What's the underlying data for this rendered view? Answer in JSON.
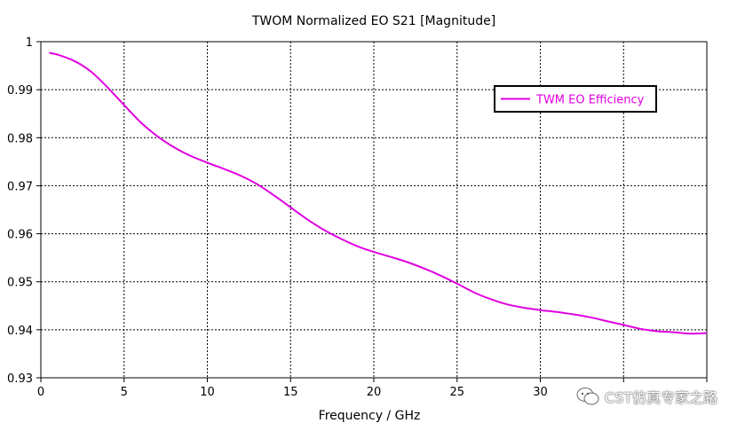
{
  "chart_data": {
    "type": "line",
    "title": "TWOM Normalized EO S21 [Magnitude]",
    "xlabel": "Frequency / GHz",
    "ylabel": "",
    "xlim": [
      0,
      40
    ],
    "ylim": [
      0.93,
      1.0
    ],
    "xticks": [
      0,
      5,
      10,
      15,
      20,
      25,
      30,
      35,
      40
    ],
    "xtick_labels": [
      "0",
      "5",
      "10",
      "15",
      "20",
      "25",
      "30",
      "",
      ""
    ],
    "yticks": [
      0.93,
      0.94,
      0.95,
      0.96,
      0.97,
      0.98,
      0.99,
      1.0
    ],
    "ytick_labels": [
      "0.93",
      "0.94",
      "0.95",
      "0.96",
      "0.97",
      "0.98",
      "0.99",
      "1"
    ],
    "grid": true,
    "legend_position": "top-right",
    "series": [
      {
        "name": "TWM EO Efficiency",
        "color": "#e000e0",
        "x": [
          0.5,
          1,
          2,
          3,
          4,
          5,
          6,
          7,
          8,
          9,
          10,
          11,
          12,
          13,
          14,
          15,
          16,
          17,
          18,
          19,
          20,
          21,
          22,
          23,
          24,
          25,
          26,
          27,
          28,
          29,
          30,
          31,
          32,
          33,
          34,
          35,
          36,
          37,
          38,
          39,
          40
        ],
        "values": [
          0.9977,
          0.9973,
          0.996,
          0.9938,
          0.9905,
          0.9868,
          0.9832,
          0.9803,
          0.978,
          0.9762,
          0.9748,
          0.9735,
          0.9721,
          0.9703,
          0.968,
          0.9655,
          0.963,
          0.9608,
          0.959,
          0.9574,
          0.9562,
          0.9552,
          0.9541,
          0.9528,
          0.9513,
          0.9496,
          0.9478,
          0.9464,
          0.9453,
          0.9446,
          0.9441,
          0.9437,
          0.9432,
          0.9426,
          0.9418,
          0.941,
          0.9402,
          0.9397,
          0.9395,
          0.9392,
          0.9393
        ]
      }
    ]
  },
  "watermark": {
    "text": "CST仿真专家之路",
    "icon": "wechat-icon"
  }
}
